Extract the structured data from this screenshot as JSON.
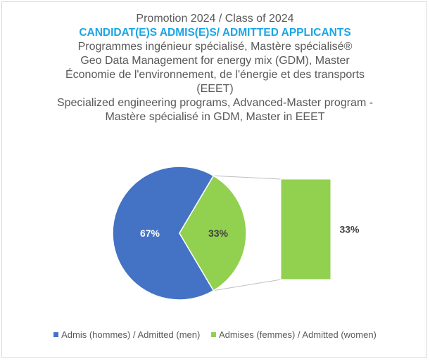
{
  "titles": {
    "line1": "Promotion 2024 / Class of 2024",
    "line2": "CANDIDAT(E)S ADMIS(E)S/ ADMITTED APPLICANTS",
    "line3": "Programmes ingénieur spécialisé, Mastère spécialisé®",
    "line4": "Geo Data Management for energy mix (GDM), Master",
    "line5": "Économie de l'environnement, de l'énergie et des transports",
    "line6": "(EEET)",
    "line7": "Specialized engineering programs, Advanced-Master program -",
    "line8": "Mastère spécialisé in GDM, Master in EEET"
  },
  "chart_data": {
    "type": "pie",
    "subtype": "bar-of-pie",
    "title": "Promotion 2024 / Class of 2024 — CANDIDAT(E)S ADMIS(E)S/ ADMITTED APPLICANTS",
    "series": [
      {
        "name": "Admis (hommes) / Admitted (men)",
        "value": 67,
        "label": "67%",
        "color": "#4472c4"
      },
      {
        "name": "Admises (femmes) / Admitted (women)",
        "value": 33,
        "label": "33%",
        "color": "#92d050"
      }
    ],
    "secondary_bar": {
      "value": 33,
      "label": "33%",
      "color": "#92d050"
    },
    "legend_position": "bottom"
  },
  "legend": {
    "men_label": "Admis (hommes) / Admitted (men)",
    "women_label": "Admises (femmes) / Admitted (women)"
  }
}
